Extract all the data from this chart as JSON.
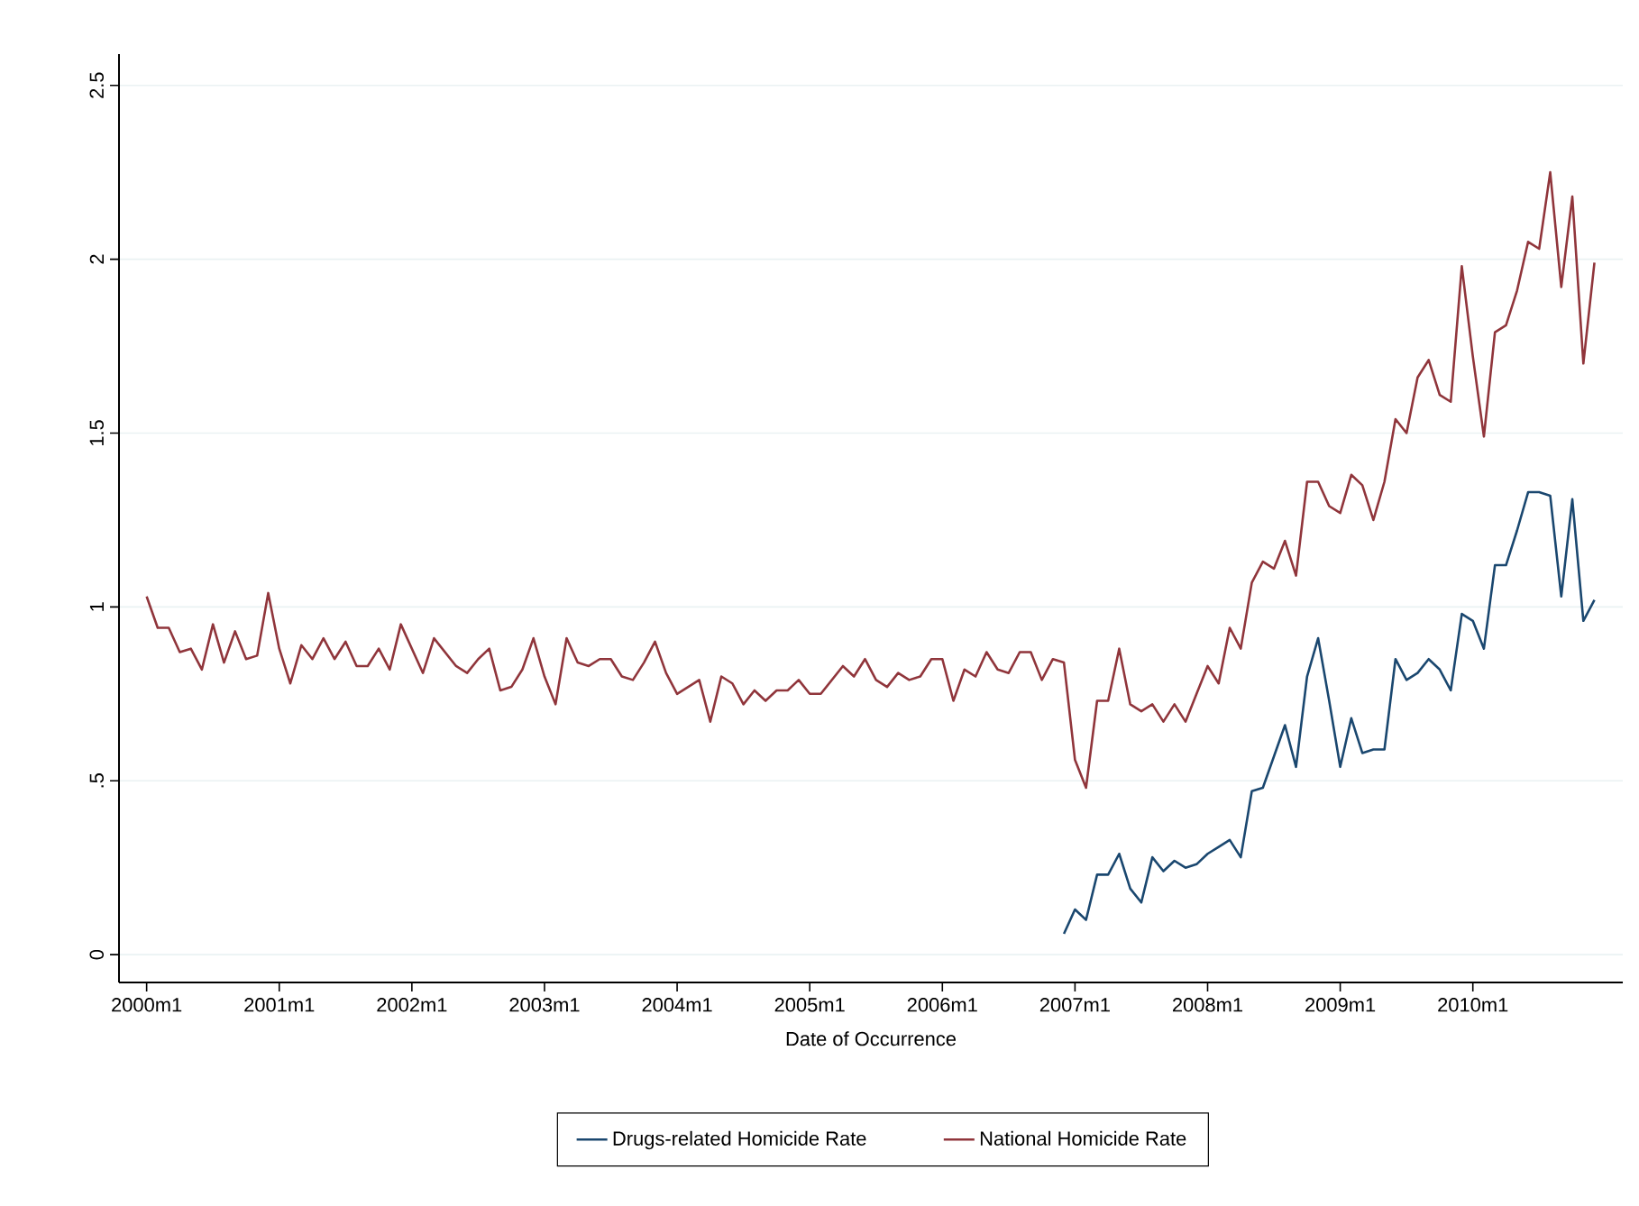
{
  "chart_data": {
    "type": "line",
    "xlabel": "Date of Occurrence",
    "xlim": [
      "1999-10-16",
      "2011-02-18"
    ],
    "xticks": [
      {
        "value": "2000-01",
        "label": "2000m1"
      },
      {
        "value": "2001-01",
        "label": "2001m1"
      },
      {
        "value": "2002-01",
        "label": "2002m1"
      },
      {
        "value": "2003-01",
        "label": "2003m1"
      },
      {
        "value": "2004-01",
        "label": "2004m1"
      },
      {
        "value": "2005-01",
        "label": "2005m1"
      },
      {
        "value": "2006-01",
        "label": "2006m1"
      },
      {
        "value": "2007-01",
        "label": "2007m1"
      },
      {
        "value": "2008-01",
        "label": "2008m1"
      },
      {
        "value": "2009-01",
        "label": "2009m1"
      },
      {
        "value": "2010-01",
        "label": "2010m1"
      }
    ],
    "ylim": [
      -0.08,
      2.59
    ],
    "yticks": [
      0,
      {
        "value": 0.5,
        "label": ".5"
      },
      1,
      1.5,
      2,
      2.5
    ],
    "grid": "y",
    "legend": "bottom",
    "line_style": "solid",
    "marker": "none",
    "series": [
      {
        "name": "Drugs-related Homicide Rate",
        "color": "#1a476f",
        "x": [
          "2006-12",
          "2007-01",
          "2007-02",
          "2007-03",
          "2007-04",
          "2007-05",
          "2007-06",
          "2007-07",
          "2007-08",
          "2007-09",
          "2007-10",
          "2007-11",
          "2007-12",
          "2008-01",
          "2008-02",
          "2008-03",
          "2008-04",
          "2008-05",
          "2008-06",
          "2008-07",
          "2008-08",
          "2008-09",
          "2008-10",
          "2008-11",
          "2008-12",
          "2009-01",
          "2009-02",
          "2009-03",
          "2009-04",
          "2009-05",
          "2009-06",
          "2009-07",
          "2009-08",
          "2009-09",
          "2009-10",
          "2009-11",
          "2009-12",
          "2010-01",
          "2010-02",
          "2010-03",
          "2010-04",
          "2010-05",
          "2010-06",
          "2010-07",
          "2010-08",
          "2010-09",
          "2010-10",
          "2010-11",
          "2010-12"
        ],
        "values": [
          0.06,
          0.13,
          0.1,
          0.23,
          0.23,
          0.29,
          0.19,
          0.15,
          0.28,
          0.24,
          0.27,
          0.25,
          0.26,
          0.29,
          0.31,
          0.33,
          0.28,
          0.47,
          0.48,
          0.57,
          0.66,
          0.54,
          0.8,
          0.91,
          0.73,
          0.54,
          0.68,
          0.58,
          0.59,
          0.59,
          0.85,
          0.79,
          0.81,
          0.85,
          0.82,
          0.76,
          0.98,
          0.96,
          0.88,
          1.12,
          1.12,
          1.22,
          1.33,
          1.33,
          1.32,
          1.03,
          1.31,
          0.96,
          1.02
        ]
      },
      {
        "name": "National Homicide Rate",
        "color": "#90353b",
        "x": [
          "2000-01",
          "2000-02",
          "2000-03",
          "2000-04",
          "2000-05",
          "2000-06",
          "2000-07",
          "2000-08",
          "2000-09",
          "2000-10",
          "2000-11",
          "2000-12",
          "2001-01",
          "2001-02",
          "2001-03",
          "2001-04",
          "2001-05",
          "2001-06",
          "2001-07",
          "2001-08",
          "2001-09",
          "2001-10",
          "2001-11",
          "2001-12",
          "2002-01",
          "2002-02",
          "2002-03",
          "2002-04",
          "2002-05",
          "2002-06",
          "2002-07",
          "2002-08",
          "2002-09",
          "2002-10",
          "2002-11",
          "2002-12",
          "2003-01",
          "2003-02",
          "2003-03",
          "2003-04",
          "2003-05",
          "2003-06",
          "2003-07",
          "2003-08",
          "2003-09",
          "2003-10",
          "2003-11",
          "2003-12",
          "2004-01",
          "2004-02",
          "2004-03",
          "2004-04",
          "2004-05",
          "2004-06",
          "2004-07",
          "2004-08",
          "2004-09",
          "2004-10",
          "2004-11",
          "2004-12",
          "2005-01",
          "2005-02",
          "2005-03",
          "2005-04",
          "2005-05",
          "2005-06",
          "2005-07",
          "2005-08",
          "2005-09",
          "2005-10",
          "2005-11",
          "2005-12",
          "2006-01",
          "2006-02",
          "2006-03",
          "2006-04",
          "2006-05",
          "2006-06",
          "2006-07",
          "2006-08",
          "2006-09",
          "2006-10",
          "2006-11",
          "2006-12",
          "2007-01",
          "2007-02",
          "2007-03",
          "2007-04",
          "2007-05",
          "2007-06",
          "2007-07",
          "2007-08",
          "2007-09",
          "2007-10",
          "2007-11",
          "2007-12",
          "2008-01",
          "2008-02",
          "2008-03",
          "2008-04",
          "2008-05",
          "2008-06",
          "2008-07",
          "2008-08",
          "2008-09",
          "2008-10",
          "2008-11",
          "2008-12",
          "2009-01",
          "2009-02",
          "2009-03",
          "2009-04",
          "2009-05",
          "2009-06",
          "2009-07",
          "2009-08",
          "2009-09",
          "2009-10",
          "2009-11",
          "2009-12",
          "2010-01",
          "2010-02",
          "2010-03",
          "2010-04",
          "2010-05",
          "2010-06",
          "2010-07",
          "2010-08",
          "2010-09",
          "2010-10",
          "2010-11",
          "2010-12"
        ],
        "values": [
          1.03,
          0.94,
          0.94,
          0.87,
          0.88,
          0.82,
          0.95,
          0.84,
          0.93,
          0.85,
          0.86,
          1.04,
          0.88,
          0.78,
          0.89,
          0.85,
          0.91,
          0.85,
          0.9,
          0.83,
          0.83,
          0.88,
          0.82,
          0.95,
          0.88,
          0.81,
          0.91,
          0.87,
          0.83,
          0.81,
          0.85,
          0.88,
          0.76,
          0.77,
          0.82,
          0.91,
          0.8,
          0.72,
          0.91,
          0.84,
          0.83,
          0.85,
          0.85,
          0.8,
          0.79,
          0.84,
          0.9,
          0.81,
          0.75,
          0.77,
          0.79,
          0.67,
          0.8,
          0.78,
          0.72,
          0.76,
          0.73,
          0.76,
          0.76,
          0.79,
          0.75,
          0.75,
          0.79,
          0.83,
          0.8,
          0.85,
          0.79,
          0.77,
          0.81,
          0.79,
          0.8,
          0.85,
          0.85,
          0.73,
          0.82,
          0.8,
          0.87,
          0.82,
          0.81,
          0.87,
          0.87,
          0.79,
          0.85,
          0.84,
          0.56,
          0.48,
          0.73,
          0.73,
          0.88,
          0.72,
          0.7,
          0.72,
          0.67,
          0.72,
          0.67,
          0.75,
          0.83,
          0.78,
          0.94,
          0.88,
          1.07,
          1.13,
          1.11,
          1.19,
          1.09,
          1.36,
          1.36,
          1.29,
          1.27,
          1.38,
          1.35,
          1.25,
          1.36,
          1.54,
          1.5,
          1.66,
          1.71,
          1.61,
          1.59,
          1.98,
          1.72,
          1.49,
          1.79,
          1.81,
          1.91,
          2.05,
          2.03,
          2.25,
          1.92,
          2.18,
          1.7,
          1.99
        ]
      }
    ]
  }
}
